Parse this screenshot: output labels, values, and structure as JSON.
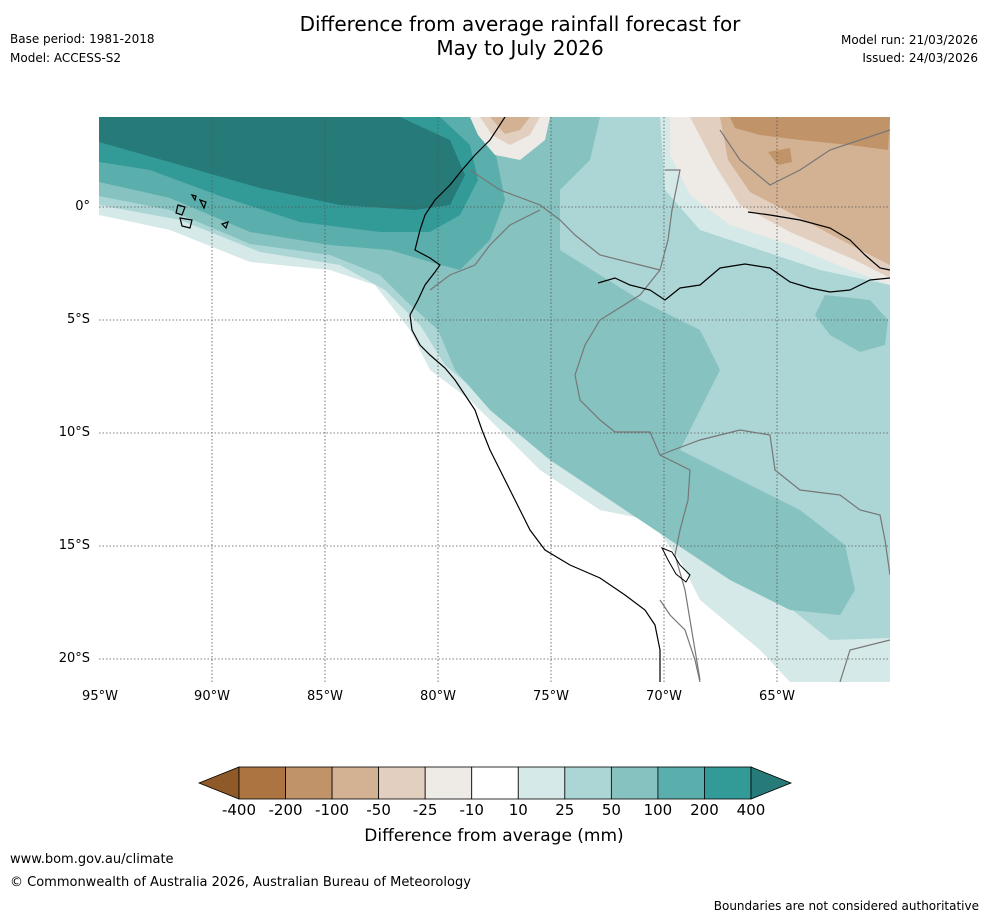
{
  "header": {
    "title_line1": "Difference from average rainfall forecast for",
    "title_line2": "May to July 2026",
    "base_period": "Base period: 1981-2018",
    "model": "Model: ACCESS-S2",
    "model_run": "Model run: 21/03/2026",
    "issued": "Issued: 24/03/2026"
  },
  "map": {
    "lat_labels": [
      "0°",
      "5°S",
      "10°S",
      "15°S",
      "20°S"
    ],
    "lon_labels": [
      "95°W",
      "90°W",
      "85°W",
      "80°W",
      "75°W",
      "70°W",
      "65°W"
    ]
  },
  "legend": {
    "title": "Difference from average (mm)",
    "ticks": [
      "-400",
      "-200",
      "-100",
      "-50",
      "-25",
      "-10",
      "10",
      "25",
      "50",
      "100",
      "200",
      "400"
    ],
    "colors": [
      "#8f5a28",
      "#ac7440",
      "#c19368",
      "#d3b193",
      "#e3cfbf",
      "#eeebe6",
      "#ffffff",
      "#d5e9e8",
      "#acd6d5",
      "#85c2c0",
      "#5aaeab",
      "#329b98",
      "#267a78"
    ]
  },
  "footer": {
    "website": "www.bom.gov.au/climate",
    "copyright": "© Commonwealth of Australia 2026, Australian Bureau of Meteorology",
    "disclaimer": "Boundaries are not considered authoritative"
  }
}
